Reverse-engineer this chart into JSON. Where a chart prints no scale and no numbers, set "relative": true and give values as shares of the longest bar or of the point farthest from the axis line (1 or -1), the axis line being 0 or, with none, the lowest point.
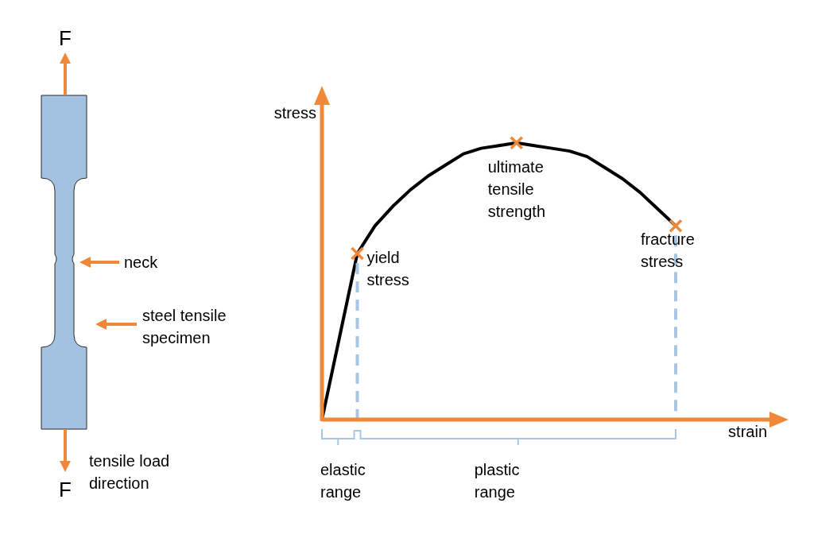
{
  "chart_data": {
    "type": "line",
    "relative": true,
    "xlabel": "strain",
    "ylabel": "stress",
    "legend": false,
    "categories": [
      null,
      null,
      null,
      null,
      null,
      null,
      null,
      null,
      null,
      null,
      null,
      null,
      null,
      null,
      null,
      null,
      null,
      null,
      null,
      null,
      null
    ],
    "series": [
      {
        "color": "#000000",
        "values": [
          0,
          0.3,
          0.6,
          0.7,
          0.77,
          0.83,
          0.88,
          0.92,
          0.96,
          0.98,
          0.99,
          1.0,
          0.99,
          0.98,
          0.97,
          0.95,
          0.91,
          0.87,
          0.82,
          0.76,
          0.7
        ]
      }
    ],
    "annotations": [
      "yield stress",
      {
        "text": "ultimate tensile strength",
        "y": 1.0
      },
      {
        "text": "fracture stress",
        "y": 0.7
      },
      "elastic range",
      "plastic range",
      "F",
      "F",
      "neck",
      "steel tensile specimen",
      "tensile load direction"
    ]
  }
}
